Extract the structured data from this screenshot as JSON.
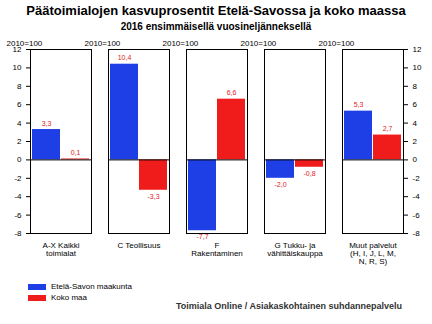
{
  "chart_data": {
    "type": "bar",
    "title": "Päätoimialojen kasvuprosentit Etelä-Savossa ja koko maassa",
    "subtitle": "2016 ensimmäisellä vuosineljänneksellä",
    "y_label": "2010=100",
    "source": "Toimiala Online / Asiakaskohtainen suhdannepalvelu",
    "categories": [
      "A-X Kaikki toimialat",
      "C Teollisuus",
      "F Rakentaminen",
      "G Tukku- ja vähittäiskauppa",
      "Muut palvelut (H, I, J, L, M, N, R, S)"
    ],
    "series": [
      {
        "name": "Etelä-Savon maakunta",
        "color": "#1f3fe6",
        "values": [
          3.3,
          10.4,
          -7.7,
          -2.0,
          5.3
        ],
        "value_labels": [
          "3,3",
          "10,4",
          "-7,7",
          "-2,0",
          "5,3"
        ]
      },
      {
        "name": "Koko maa",
        "color": "#f01c1c",
        "values": [
          0.1,
          -3.3,
          6.6,
          -0.8,
          2.7
        ],
        "value_labels": [
          "0,1",
          "-3,3",
          "6,6",
          "-0,8",
          "2,7"
        ]
      }
    ],
    "ylim": [
      -8,
      12
    ],
    "yticks": [
      -8,
      -6,
      -4,
      -2,
      0,
      2,
      4,
      6,
      8,
      10,
      12
    ],
    "grid": false,
    "data_labels": true,
    "legend": "bottom-left"
  }
}
